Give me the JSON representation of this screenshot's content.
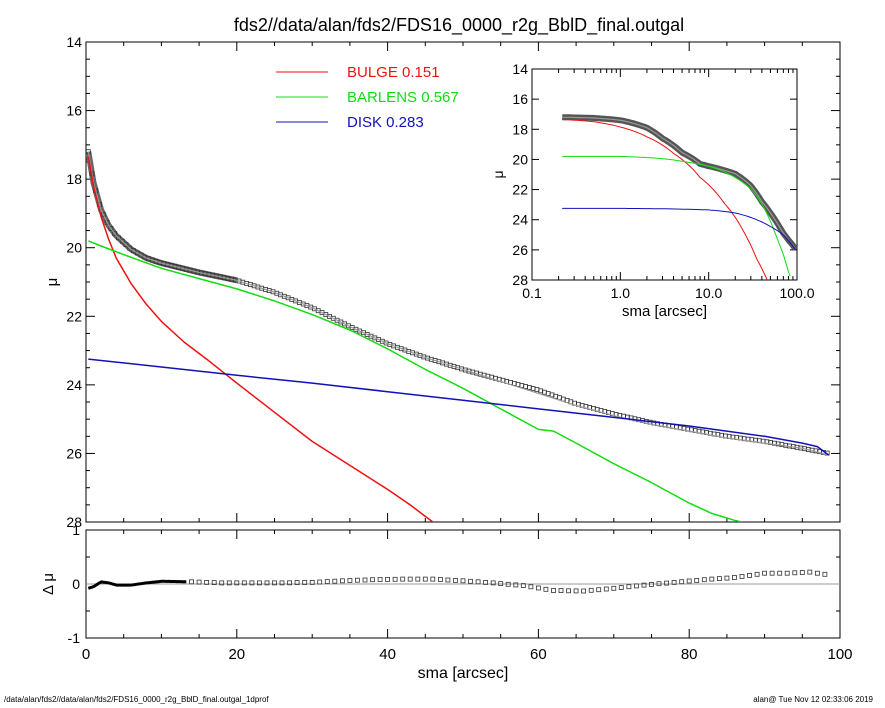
{
  "title": "fds2//data/alan/fds2/FDS16_0000_r2g_BblD_final.outgal",
  "footer_left": "/data/alan/fds2//data/alan/fds2/FDS16_0000_r2g_BblD_final.outgal_1dprof",
  "footer_right": "alan@  Tue Nov 12 02:33:06 2019",
  "colors": {
    "bulge": "#ee1111",
    "barlens": "#11dd11",
    "disk": "#1111bb",
    "model": "#999999",
    "data": "#333333"
  },
  "chart_data": [
    {
      "type": "line",
      "panel": "main",
      "xlabel": "sma [arcsec]",
      "ylabel": "μ",
      "xlim": [
        0,
        100
      ],
      "ylim": [
        28,
        14
      ],
      "yreversed": true,
      "xticks": [
        0,
        20,
        40,
        60,
        80,
        100
      ],
      "yticks": [
        14,
        16,
        18,
        20,
        22,
        24,
        26,
        28
      ],
      "legend_position": "top-center",
      "legend": [
        {
          "label": "BULGE",
          "value": "0.151",
          "color": "#ee1111"
        },
        {
          "label": "BARLENS",
          "value": "0.567",
          "color": "#11dd11"
        },
        {
          "label": "DISK",
          "value": "0.283",
          "color": "#1111bb"
        }
      ],
      "series": [
        {
          "name": "BULGE",
          "color": "#ee1111",
          "x": [
            0.3,
            1,
            2,
            3,
            4,
            6,
            8,
            10,
            13,
            16,
            20,
            25,
            30,
            35,
            40,
            43,
            46
          ],
          "y": [
            17.35,
            18.2,
            19.1,
            19.75,
            20.3,
            21.05,
            21.65,
            22.15,
            22.75,
            23.25,
            23.95,
            24.8,
            25.65,
            26.35,
            27.05,
            27.5,
            28.0
          ]
        },
        {
          "name": "BARLENS",
          "color": "#11dd11",
          "x": [
            0.3,
            2,
            5,
            10,
            15,
            20,
            25,
            30,
            35,
            40,
            45,
            50,
            55,
            60,
            62,
            65,
            70,
            75,
            80,
            83,
            86,
            87
          ],
          "y": [
            19.8,
            19.95,
            20.2,
            20.6,
            20.9,
            21.2,
            21.55,
            21.95,
            22.4,
            22.95,
            23.55,
            24.1,
            24.7,
            25.3,
            25.35,
            25.7,
            26.3,
            26.85,
            27.45,
            27.75,
            27.95,
            28.0
          ]
        },
        {
          "name": "DISK",
          "color": "#1111bb",
          "x": [
            0.3,
            10,
            20,
            30,
            40,
            50,
            60,
            70,
            80,
            90,
            95,
            97,
            98.5
          ],
          "y": [
            23.25,
            23.48,
            23.72,
            23.95,
            24.2,
            24.45,
            24.7,
            24.95,
            25.2,
            25.5,
            25.7,
            25.8,
            26.05
          ]
        },
        {
          "name": "MODEL",
          "color": "#999999",
          "x": [
            0.3,
            1,
            2,
            3,
            4,
            6,
            8,
            10,
            15,
            20,
            25,
            30,
            35,
            40,
            45,
            50,
            55,
            60,
            65,
            70,
            75,
            80,
            85,
            90,
            95,
            98.5
          ],
          "y": [
            17.2,
            18.1,
            18.9,
            19.35,
            19.65,
            20.05,
            20.3,
            20.45,
            20.72,
            20.95,
            21.3,
            21.75,
            22.3,
            22.8,
            23.2,
            23.55,
            23.9,
            24.25,
            24.6,
            24.9,
            25.15,
            25.35,
            25.55,
            25.7,
            25.85,
            26.05
          ]
        },
        {
          "name": "DATA",
          "color": "#333333",
          "x": [
            0.3,
            1,
            2,
            3,
            4,
            6,
            8,
            10,
            15,
            20,
            25,
            30,
            35,
            40,
            45,
            50,
            55,
            60,
            65,
            70,
            75,
            80,
            85,
            90,
            95,
            98.5
          ],
          "y": [
            17.2,
            18.1,
            18.9,
            19.35,
            19.65,
            20.05,
            20.3,
            20.45,
            20.72,
            20.95,
            21.3,
            21.75,
            22.3,
            22.8,
            23.2,
            23.55,
            23.85,
            24.15,
            24.55,
            24.85,
            25.1,
            25.3,
            25.5,
            25.65,
            25.85,
            26.0
          ]
        }
      ]
    },
    {
      "type": "scatter",
      "panel": "residual",
      "xlabel": "sma [arcsec]",
      "ylabel": "Δ μ",
      "xlim": [
        0,
        100
      ],
      "ylim": [
        -1,
        1
      ],
      "xticks": [
        0,
        20,
        40,
        60,
        80,
        100
      ],
      "yticks": [
        -1,
        0,
        1
      ],
      "series": [
        {
          "name": "RESIDUAL",
          "x": [
            0.3,
            1,
            2,
            3,
            4,
            6,
            8,
            10,
            14,
            18,
            22,
            26,
            30,
            34,
            38,
            42,
            46,
            50,
            54,
            58,
            62,
            66,
            70,
            74,
            78,
            82,
            86,
            90,
            93,
            96,
            98.5
          ],
          "y": [
            -0.08,
            -0.05,
            0.04,
            0.02,
            -0.02,
            -0.02,
            0.02,
            0.05,
            0.04,
            0.02,
            0.02,
            0.02,
            0.03,
            0.06,
            0.08,
            0.09,
            0.09,
            0.06,
            0.02,
            -0.03,
            -0.12,
            -0.13,
            -0.08,
            -0.02,
            0.03,
            0.08,
            0.12,
            0.2,
            0.2,
            0.22,
            0.17
          ]
        }
      ]
    },
    {
      "type": "line",
      "panel": "inset",
      "xlabel": "sma [arcsec]",
      "ylabel": "μ",
      "xscale": "log",
      "xlim": [
        0.1,
        100
      ],
      "ylim": [
        28,
        14
      ],
      "yreversed": true,
      "xticklabels": [
        "0.1",
        "1.0",
        "10.0",
        "100.0"
      ],
      "yticks": [
        14,
        16,
        18,
        20,
        22,
        24,
        26,
        28
      ],
      "series": [
        {
          "name": "BULGE",
          "color": "#ee1111",
          "x": [
            0.22,
            0.5,
            1,
            2,
            4,
            8,
            15,
            25,
            35,
            46
          ],
          "y": [
            17.35,
            17.5,
            17.85,
            18.5,
            19.6,
            21.2,
            22.9,
            24.8,
            26.6,
            28.0
          ]
        },
        {
          "name": "BARLENS",
          "color": "#11dd11",
          "x": [
            0.22,
            1,
            3,
            6,
            10,
            20,
            30,
            40,
            50,
            60,
            70,
            80,
            87
          ],
          "y": [
            19.8,
            19.8,
            19.95,
            20.2,
            20.45,
            21.2,
            21.95,
            22.95,
            24.1,
            25.3,
            26.3,
            27.45,
            28.0
          ]
        },
        {
          "name": "DISK",
          "color": "#1111bb",
          "x": [
            0.22,
            1,
            5,
            10,
            20,
            30,
            50,
            70,
            98
          ],
          "y": [
            23.25,
            23.25,
            23.3,
            23.35,
            23.55,
            23.85,
            24.45,
            25.0,
            26.05
          ]
        },
        {
          "name": "MODEL",
          "color": "#999999",
          "x": [
            0.22,
            0.5,
            1,
            2,
            3,
            5,
            8,
            10,
            15,
            20,
            30,
            40,
            50,
            60,
            70,
            80,
            90,
            98
          ],
          "y": [
            17.2,
            17.25,
            17.4,
            17.9,
            18.6,
            19.55,
            20.3,
            20.45,
            20.72,
            20.95,
            21.75,
            22.8,
            23.55,
            24.25,
            24.9,
            25.35,
            25.7,
            26.05
          ]
        }
      ]
    }
  ]
}
